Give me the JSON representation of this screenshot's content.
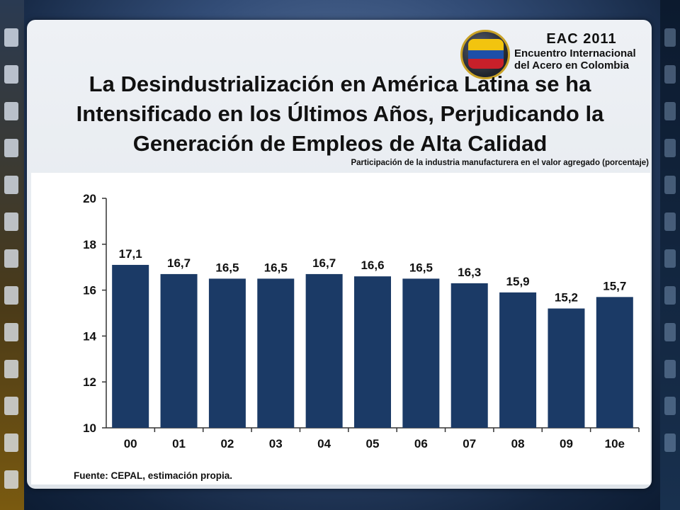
{
  "logo": {
    "line1": "EAC 2011",
    "line2": "Encuentro Internacional",
    "line3": "del Acero en Colombia"
  },
  "slide": {
    "title": "La Desindustrialización en América Latina se ha Intensificado en los Últimos Años, Perjudicando la Generación de Empleos de Alta Calidad",
    "source": "Fuente: CEPAL, estimación propia."
  },
  "colors": {
    "bar": "#1b3a66"
  },
  "chart_data": {
    "type": "bar",
    "title": "Participación de la industria manufacturera en el valor agregado (porcentaje)",
    "categories": [
      "00",
      "01",
      "02",
      "03",
      "04",
      "05",
      "06",
      "07",
      "08",
      "09",
      "10e"
    ],
    "values": [
      17.1,
      16.7,
      16.5,
      16.5,
      16.7,
      16.6,
      16.5,
      16.3,
      15.9,
      15.2,
      15.7
    ],
    "value_labels": [
      "17,1",
      "16,7",
      "16,5",
      "16,5",
      "16,7",
      "16,6",
      "16,5",
      "16,3",
      "15,9",
      "15,2",
      "15,7"
    ],
    "ylim": [
      10,
      20
    ],
    "yticks": [
      10,
      12,
      14,
      16,
      18,
      20
    ],
    "xlabel": "",
    "ylabel": "",
    "grid": false,
    "legend": "none"
  }
}
